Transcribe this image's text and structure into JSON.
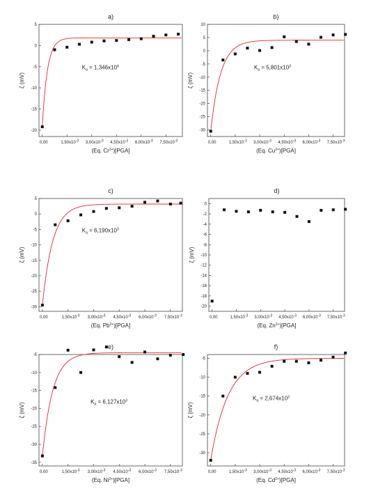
{
  "chart_data": [
    {
      "type": "scatter",
      "panel_label": "a)",
      "ylabel": "ζ (mV)",
      "xlabel": {
        "pre": "(Eq. Cr",
        "sup": "3+",
        "post": ")[PGA]"
      },
      "ka": {
        "pre": "K",
        "sub": "a",
        "mid": " = 1,346x10",
        "sup": "4"
      },
      "xlim": [
        -0.0002,
        0.0085
      ],
      "ylim": [
        -21.5,
        5
      ],
      "y_ticks": [
        5,
        0,
        -5,
        -10,
        -15,
        -20
      ],
      "y_tick_labels": [
        "5",
        "0",
        "-5",
        "-10",
        "-15",
        "-20"
      ],
      "x_ticks": [
        0,
        0.0015,
        0.003,
        0.0045,
        0.006,
        0.0075
      ],
      "x_tick_labels": [
        "0,00",
        "1,50x10",
        "3,00x10",
        "4,50x10",
        "6,00x10",
        "7,50x10"
      ],
      "x_tick_exp": "-3",
      "fit": {
        "A": -19.0,
        "B": 1.8,
        "k": 3200
      },
      "series": [
        {
          "x": [
            0,
            0.00075,
            0.0015,
            0.00225,
            0.003,
            0.00375,
            0.0045,
            0.00525,
            0.006,
            0.00675,
            0.0075,
            0.00825
          ],
          "y": [
            -19.2,
            -1.0,
            -0.4,
            0.3,
            0.8,
            1.1,
            1.2,
            1.4,
            1.6,
            2.2,
            2.5,
            2.7
          ]
        }
      ]
    },
    {
      "type": "scatter",
      "panel_label": "b)",
      "ylabel": "ζ (mV)",
      "xlabel": {
        "pre": "(Eq. Cu",
        "sup": "2+",
        "post": ")[PGA]"
      },
      "ka": {
        "pre": "K",
        "sub": "a",
        "mid": " = 5,801x10",
        "sup": "3"
      },
      "xlim": [
        -0.0002,
        0.0082
      ],
      "ylim": [
        -32.5,
        10
      ],
      "y_ticks": [
        10,
        5,
        0,
        -5,
        -10,
        -15,
        -20,
        -25,
        -30
      ],
      "y_tick_labels": [
        "10",
        "5",
        "0",
        "-5",
        "-10",
        "-15",
        "-20",
        "-25",
        "-30"
      ],
      "x_ticks": [
        0,
        0.0015,
        0.003,
        0.0045,
        0.006,
        0.0075
      ],
      "x_tick_labels": [
        "0,00",
        "1,50x10",
        "3,00x10",
        "4,50x10",
        "6,00x10",
        "7,50x10"
      ],
      "x_tick_exp": "-3",
      "fit": {
        "A": -30.5,
        "B": 4.0,
        "k": 1650
      },
      "series": [
        {
          "x": [
            0,
            0.00075,
            0.0015,
            0.00225,
            0.003,
            0.00375,
            0.0045,
            0.00525,
            0.006,
            0.00675,
            0.0075,
            0.00825
          ],
          "y": [
            -30.5,
            -3.5,
            -1.2,
            1.0,
            0.1,
            1.2,
            5.3,
            3.5,
            2.5,
            5.1,
            6.0,
            6.2
          ]
        }
      ]
    },
    {
      "type": "scatter",
      "panel_label": "c)",
      "ylabel": "ζ (mV)",
      "xlabel": {
        "pre": "(Eq. Pb",
        "sup": "2+",
        "post": ")[PGA]"
      },
      "ka": {
        "pre": "K",
        "sub": "a",
        "mid": " = 6,190x10",
        "sup": "3"
      },
      "xlim": [
        -0.0002,
        0.0082
      ],
      "ylim": [
        -31.5,
        5
      ],
      "y_ticks": [
        5,
        0,
        -5,
        -10,
        -15,
        -20,
        -25,
        -30
      ],
      "y_tick_labels": [
        "5",
        "0",
        "-5",
        "-10",
        "-15",
        "-20",
        "-25",
        "-30"
      ],
      "x_ticks": [
        0,
        0.0015,
        0.003,
        0.0045,
        0.006,
        0.0075
      ],
      "x_tick_labels": [
        "0,00",
        "1,50x10",
        "3,00x10",
        "4,50x10",
        "6,00x10",
        "7,50x10"
      ],
      "x_tick_exp": "-3",
      "fit": {
        "A": -29.5,
        "B": 3.2,
        "k": 1650
      },
      "series": [
        {
          "x": [
            0,
            0.00075,
            0.0015,
            0.00225,
            0.003,
            0.00375,
            0.0045,
            0.00525,
            0.006,
            0.00675,
            0.0075,
            0.0081
          ],
          "y": [
            -29.5,
            -3.5,
            -2.2,
            -0.3,
            0.8,
            1.8,
            2.0,
            2.5,
            3.8,
            4.2,
            3.2,
            3.5
          ]
        }
      ]
    },
    {
      "type": "scatter",
      "panel_label": "d)",
      "ylabel": "ζ (mV)",
      "xlabel": {
        "pre": "(Eq. Zn",
        "sup": "2+",
        "post": ")[PGA]"
      },
      "ka": null,
      "xlim": [
        -0.0002,
        0.0082
      ],
      "ylim": [
        -21,
        1
      ],
      "y_ticks": [
        0,
        -2,
        -4,
        -6,
        -8,
        -10,
        -12,
        -14,
        -16,
        -18,
        -20
      ],
      "y_tick_labels": [
        "0",
        "-2",
        "-4",
        "-6",
        "-8",
        "-10",
        "-12",
        "-14",
        "-16",
        "-18",
        "-20"
      ],
      "x_ticks": [
        0,
        0.0015,
        0.003,
        0.0045,
        0.006,
        0.0075
      ],
      "x_tick_labels": [
        "0,00",
        "1,50x10",
        "3,00x10",
        "4,50x10",
        "6,00x10",
        "7,50x10"
      ],
      "x_tick_exp": "-3",
      "fit": null,
      "series": [
        {
          "x": [
            0,
            0.00075,
            0.0015,
            0.00225,
            0.003,
            0.00375,
            0.0045,
            0.00525,
            0.006,
            0.00675,
            0.0075,
            0.00825
          ],
          "y": [
            -19.0,
            -1.2,
            -1.5,
            -1.6,
            -1.3,
            -1.6,
            -1.7,
            -2.5,
            -3.5,
            -1.3,
            -1.2,
            -1.1
          ]
        }
      ]
    },
    {
      "type": "scatter",
      "panel_label": "e)",
      "ylabel": "ζ (mV)",
      "xlabel": {
        "pre": "(Eq. Ni",
        "sup": "2+",
        "post": ")[PGA]"
      },
      "ka": {
        "pre": "K",
        "sub": "a",
        "mid": " = 6,127x10",
        "sup": "3"
      },
      "xlim": [
        -0.0002,
        0.0082
      ],
      "ylim": [
        -36,
        -5
      ],
      "y_ticks": [
        -5,
        -10,
        -15,
        -20,
        -25,
        -30,
        -35
      ],
      "y_tick_labels": [
        "-5",
        "-10",
        "-15",
        "-20",
        "-25",
        "-30",
        "-35"
      ],
      "x_ticks": [
        0,
        0.0015,
        0.003,
        0.0045,
        0.006,
        0.0075
      ],
      "x_tick_labels": [
        "0,00",
        "1,50x10",
        "3,00x10",
        "4,50x10",
        "6,00x10",
        "7,50x10"
      ],
      "x_tick_exp": "-3",
      "fit": {
        "A": -33.2,
        "B": -4.5,
        "k": 1650
      },
      "series": [
        {
          "x": [
            0,
            0.00075,
            0.0015,
            0.00225,
            0.003,
            0.00375,
            0.0045,
            0.00525,
            0.006,
            0.00675,
            0.0075,
            0.00825
          ],
          "y": [
            -33.2,
            -14.2,
            -3.8,
            -10.0,
            -3.7,
            -2.9,
            -5.6,
            -7.2,
            -4.3,
            -6.2,
            -5.2,
            -5.0
          ]
        }
      ]
    },
    {
      "type": "scatter",
      "panel_label": "f)",
      "ylabel": "ζ (mV)",
      "xlabel": {
        "pre": "(Eq. Cd",
        "sup": "2+",
        "post": ")[PGA]"
      },
      "ka": {
        "pre": "K",
        "sub": "a",
        "mid": " = 2,674x10",
        "sup": "3"
      },
      "xlim": [
        -0.0002,
        0.0082
      ],
      "ylim": [
        -33.5,
        -4
      ],
      "y_ticks": [
        -5,
        -10,
        -15,
        -20,
        -25,
        -30
      ],
      "y_tick_labels": [
        "-5",
        "-10",
        "-15",
        "-20",
        "-25",
        "-30"
      ],
      "x_ticks": [
        0,
        0.0015,
        0.003,
        0.0045,
        0.006,
        0.0075
      ],
      "x_tick_labels": [
        "0,00",
        "1,50x10",
        "3,00x10",
        "4,50x10",
        "6,00x10",
        "7,50x10"
      ],
      "x_tick_exp": "-3",
      "fit": {
        "A": -32.0,
        "B": -5.0,
        "k": 950
      },
      "series": [
        {
          "x": [
            0,
            0.00075,
            0.0015,
            0.00225,
            0.003,
            0.00375,
            0.0045,
            0.00525,
            0.006,
            0.00675,
            0.0075,
            0.00825
          ],
          "y": [
            -32.0,
            -15.0,
            -10.0,
            -9.0,
            -8.7,
            -7.1,
            -5.8,
            -5.8,
            -6.2,
            -5.5,
            -4.7,
            -3.6
          ]
        }
      ]
    }
  ]
}
